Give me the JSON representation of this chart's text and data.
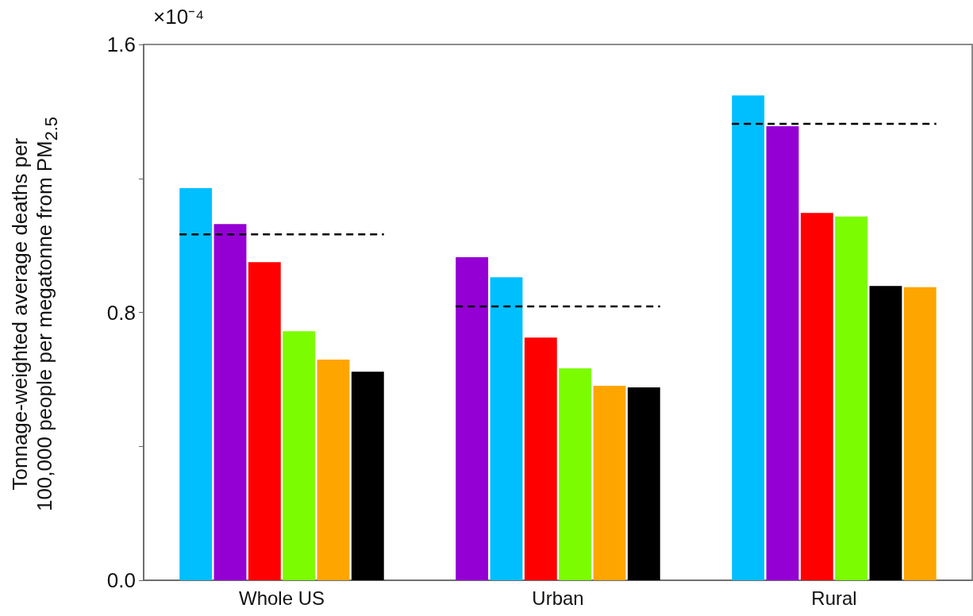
{
  "chart_data": {
    "type": "bar",
    "ylabel": "Tonnage-weighted average deaths per 100,000 people per megatonne from PM$_{2.5}$",
    "annotations": [
      "×10⁻⁴"
    ],
    "categories": [
      "Whole US",
      "Urban",
      "Rural"
    ],
    "series": [
      {
        "colors": [
          "#00bfff",
          "#9400d3",
          "#00bfff"
        ],
        "values": [
          1.171,
          0.965,
          1.448
        ]
      },
      {
        "colors": [
          "#9400d3",
          "#00bfff",
          "#9400d3"
        ],
        "values": [
          1.064,
          0.905,
          1.356
        ]
      },
      {
        "colors": [
          "#ff0000",
          "#ff0000",
          "#ff0000"
        ],
        "values": [
          0.95,
          0.725,
          1.097
        ]
      },
      {
        "colors": [
          "#7cfc00",
          "#7cfc00",
          "#7cfc00"
        ],
        "values": [
          0.744,
          0.633,
          1.086
        ]
      },
      {
        "colors": [
          "#ffa500",
          "#ffa500",
          "#000000"
        ],
        "values": [
          0.659,
          0.581,
          0.879
        ]
      },
      {
        "colors": [
          "#000000",
          "#000000",
          "#ffa500"
        ],
        "values": [
          0.623,
          0.576,
          0.875
        ]
      }
    ],
    "ref_lines": [
      {
        "axis": "y",
        "value": 1.033,
        "color": "#000000",
        "line_style": "dashed"
      },
      {
        "axis": "y",
        "value": 0.818,
        "color": "#000000",
        "line_style": "dashed"
      },
      {
        "axis": "y",
        "value": 1.363,
        "color": "#000000",
        "line_style": "dashed"
      }
    ],
    "ylim": [
      0,
      1.6
    ],
    "yticks": [
      {
        "value": 0,
        "label": "0.0"
      },
      {
        "value": 0.4,
        "label": null
      },
      {
        "value": 0.8,
        "label": "0.8"
      },
      {
        "value": 1.2,
        "label": null
      },
      {
        "value": 1.6,
        "label": "1.6"
      }
    ],
    "grid": false
  }
}
